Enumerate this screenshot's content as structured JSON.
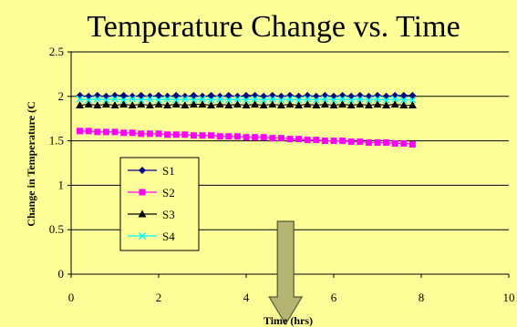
{
  "chart_data": {
    "type": "scatter",
    "title": "Temperature Change vs. Time",
    "xlabel": "Time (hrs)",
    "ylabel": "Change in Temperature (C",
    "xlim": [
      0,
      10
    ],
    "ylim": [
      0,
      2.5
    ],
    "x_ticks": [
      "0",
      "2",
      "4",
      "6",
      "8",
      "10"
    ],
    "y_ticks": [
      "0",
      "0.5",
      "1",
      "1.5",
      "2",
      "2.5"
    ],
    "grid": "horizontal",
    "legend_position": "left-middle",
    "x_start": 0.2,
    "x_step": 0.2,
    "series": [
      {
        "name": "S1",
        "color": "#000080",
        "marker": "diamond",
        "values": [
          2.01,
          2.0,
          2.01,
          2.0,
          2.01,
          2.01,
          2.0,
          2.01,
          2.0,
          2.01,
          2.0,
          2.01,
          2.0,
          2.01,
          2.0,
          2.01,
          2.0,
          2.01,
          2.0,
          2.01,
          2.01,
          2.0,
          2.01,
          2.0,
          2.01,
          2.0,
          2.01,
          2.0,
          2.01,
          2.0,
          2.01,
          2.0,
          2.01,
          2.0,
          2.01,
          2.0,
          2.01,
          2.01,
          2.01
        ]
      },
      {
        "name": "S2",
        "color": "#FF00FF",
        "marker": "square",
        "values": [
          1.61,
          1.61,
          1.6,
          1.6,
          1.6,
          1.59,
          1.59,
          1.58,
          1.58,
          1.58,
          1.57,
          1.57,
          1.57,
          1.56,
          1.56,
          1.56,
          1.55,
          1.55,
          1.55,
          1.54,
          1.54,
          1.54,
          1.53,
          1.53,
          1.52,
          1.52,
          1.51,
          1.51,
          1.5,
          1.5,
          1.5,
          1.49,
          1.49,
          1.48,
          1.48,
          1.48,
          1.47,
          1.47,
          1.46
        ]
      },
      {
        "name": "S3",
        "color": "#000000",
        "marker": "triangle",
        "values": [
          1.9,
          1.91,
          1.9,
          1.91,
          1.9,
          1.91,
          1.9,
          1.91,
          1.9,
          1.91,
          1.9,
          1.91,
          1.9,
          1.91,
          1.91,
          1.9,
          1.91,
          1.9,
          1.91,
          1.9,
          1.91,
          1.9,
          1.91,
          1.9,
          1.91,
          1.9,
          1.91,
          1.9,
          1.91,
          1.9,
          1.91,
          1.9,
          1.91,
          1.9,
          1.91,
          1.9,
          1.91,
          1.9,
          1.9
        ]
      },
      {
        "name": "S4",
        "color": "#00FFFF",
        "marker": "x",
        "values": [
          1.97,
          1.96,
          1.97,
          1.96,
          1.97,
          1.96,
          1.97,
          1.96,
          1.97,
          1.96,
          1.97,
          1.96,
          1.97,
          1.96,
          1.97,
          1.96,
          1.97,
          1.96,
          1.97,
          1.96,
          1.97,
          1.96,
          1.97,
          1.96,
          1.97,
          1.96,
          1.97,
          1.96,
          1.97,
          1.96,
          1.97,
          1.96,
          1.97,
          1.96,
          1.97,
          1.96,
          1.97,
          1.96,
          1.96
        ]
      }
    ],
    "annotation": {
      "type": "down-arrow",
      "color": "#B5B573",
      "x": 4.9
    }
  }
}
